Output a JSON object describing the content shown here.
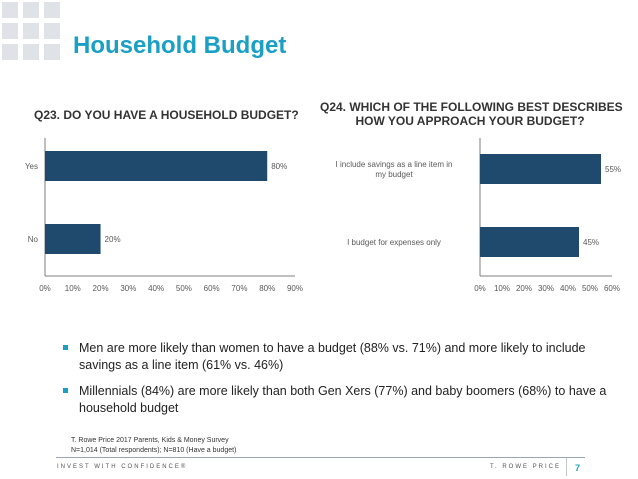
{
  "slide": {
    "title": "Household Budget",
    "page_number": "7",
    "footer_left": "INVEST WITH CONFIDENCE®",
    "footer_right": "T. ROWE PRICE",
    "accent_color": "#19a0c4",
    "bar_color": "#1f4a6e"
  },
  "q23": {
    "question": "Q23. DO YOU HAVE A HOUSEHOLD BUDGET?"
  },
  "q24": {
    "question_line1": "Q24. WHICH OF THE FOLLOWING BEST DESCRIBES",
    "question_line2": "HOW YOU APPROACH YOUR BUDGET?"
  },
  "chart_data": [
    {
      "type": "bar",
      "orientation": "horizontal",
      "title": "Q23. DO YOU HAVE A HOUSEHOLD BUDGET?",
      "categories": [
        "Yes",
        "No"
      ],
      "values": [
        80,
        20
      ],
      "value_labels": [
        "80%",
        "20%"
      ],
      "xlim": [
        0,
        90
      ],
      "ticks": [
        "0%",
        "10%",
        "20%",
        "30%",
        "40%",
        "50%",
        "60%",
        "70%",
        "80%",
        "90%"
      ],
      "grid": false
    },
    {
      "type": "bar",
      "orientation": "horizontal",
      "title": "Q24. WHICH OF THE FOLLOWING BEST DESCRIBES HOW YOU APPROACH YOUR BUDGET?",
      "categories": [
        [
          "I include savings as a line item in",
          "my budget"
        ],
        [
          "I budget for expenses only"
        ]
      ],
      "values": [
        55,
        45
      ],
      "value_labels": [
        "55%",
        "45%"
      ],
      "xlim": [
        0,
        60
      ],
      "ticks": [
        "0%",
        "10%",
        "20%",
        "30%",
        "40%",
        "50%",
        "60%"
      ],
      "grid": false
    }
  ],
  "bullets": [
    [
      "Men are more likely than women to have a budget (88% vs. 71%) and more likely to include",
      "savings as a line item (61% vs. 46%)"
    ],
    [
      "Millennials (84%) are more likely than both Gen Xers (77%) and baby boomers (68%) to have a",
      "household budget"
    ]
  ],
  "source": {
    "line1": "T. Rowe Price 2017 Parents, Kids & Money Survey",
    "line2": "N=1,014 (Total respondents); N=810 (Have a budget)"
  }
}
